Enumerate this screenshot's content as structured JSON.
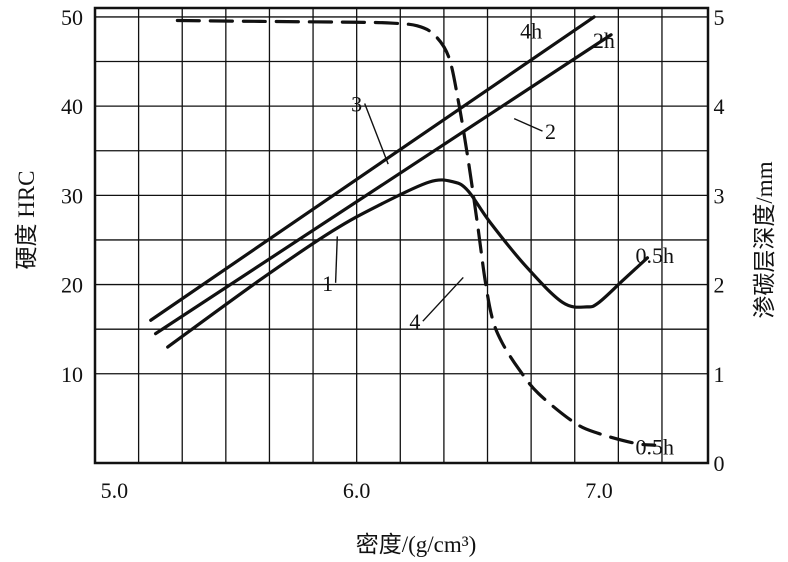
{
  "chart_data": {
    "type": "line",
    "xlabel": "密度/(g/cm³)",
    "ylabel": "硬度 HRC",
    "y2label": "渗碳层深度/mm",
    "xlim": [
      4.92,
      7.45
    ],
    "ylim": [
      0,
      51
    ],
    "y2lim": [
      0,
      5.1
    ],
    "x_ticks": [
      "5.0",
      "6.0",
      "7.0"
    ],
    "x_tick_values": [
      5.0,
      6.0,
      7.0
    ],
    "y_ticks": [
      "10",
      "20",
      "30",
      "40",
      "50"
    ],
    "y_tick_values": [
      10,
      20,
      30,
      40,
      50
    ],
    "y2_ticks": [
      "0",
      "1",
      "2",
      "3",
      "4",
      "5"
    ],
    "y2_tick_values": [
      0,
      1,
      2,
      3,
      4,
      5
    ],
    "x_grid": [
      4.92,
      5.1,
      5.28,
      5.46,
      5.64,
      5.82,
      6.0,
      6.18,
      6.36,
      6.54,
      6.72,
      6.9,
      7.08,
      7.26,
      7.45
    ],
    "y_grid": [
      10,
      15,
      20,
      25,
      30,
      35,
      40,
      45,
      50
    ],
    "grid": true,
    "series": [
      {
        "label": "4h",
        "axis": "left",
        "dash": "solid",
        "x": [
          5.15,
          6.98
        ],
        "y": [
          16,
          50
        ]
      },
      {
        "label": "2h",
        "axis": "left",
        "dash": "solid",
        "x": [
          5.17,
          7.05
        ],
        "y": [
          14.5,
          48
        ]
      },
      {
        "label": "0.5h",
        "axis": "left",
        "dash": "solid",
        "x": [
          5.22,
          5.6,
          5.9,
          6.1,
          6.3,
          6.4,
          6.46,
          6.55,
          6.7,
          6.85,
          6.95,
          7.0,
          7.1,
          7.2
        ],
        "y": [
          13,
          20.5,
          26,
          29,
          31.5,
          31.5,
          30.5,
          27,
          22,
          18,
          17.5,
          18,
          20.5,
          23
        ]
      },
      {
        "label": "0.5h",
        "axis": "right",
        "dash": "dashed",
        "x": [
          5.26,
          5.6,
          6.0,
          6.15,
          6.25,
          6.32,
          6.38,
          6.42,
          6.46,
          6.5,
          6.53,
          6.56,
          6.6,
          6.67,
          6.75,
          6.9,
          7.0,
          7.15,
          7.23
        ],
        "y": [
          4.96,
          4.95,
          4.94,
          4.93,
          4.9,
          4.8,
          4.55,
          4.05,
          3.4,
          2.65,
          2.05,
          1.62,
          1.35,
          1.05,
          0.78,
          0.45,
          0.33,
          0.22,
          0.2
        ]
      }
    ],
    "annotations": [
      {
        "text": "4h",
        "x": 6.72,
        "y": 47.6,
        "pointer": null
      },
      {
        "text": "2h",
        "x": 7.02,
        "y": 46.5,
        "pointer": null
      },
      {
        "text": "0.5h",
        "x": 7.23,
        "y": 22.4,
        "pointer": null
      },
      {
        "text": "0.5h",
        "x": 7.23,
        "y": 0.95,
        "pointer": null
      },
      {
        "text": "3",
        "x": 6.0,
        "y": 39.4,
        "pointer": [
          6.13,
          33.5
        ]
      },
      {
        "text": "2",
        "x": 6.8,
        "y": 36.3,
        "pointer": [
          6.65,
          38.6
        ]
      },
      {
        "text": "1",
        "x": 5.88,
        "y": 19.3,
        "pointer": [
          5.92,
          25.4
        ]
      },
      {
        "text": "4",
        "x": 6.24,
        "y": 15.0,
        "pointer": [
          6.44,
          20.8
        ]
      }
    ]
  }
}
